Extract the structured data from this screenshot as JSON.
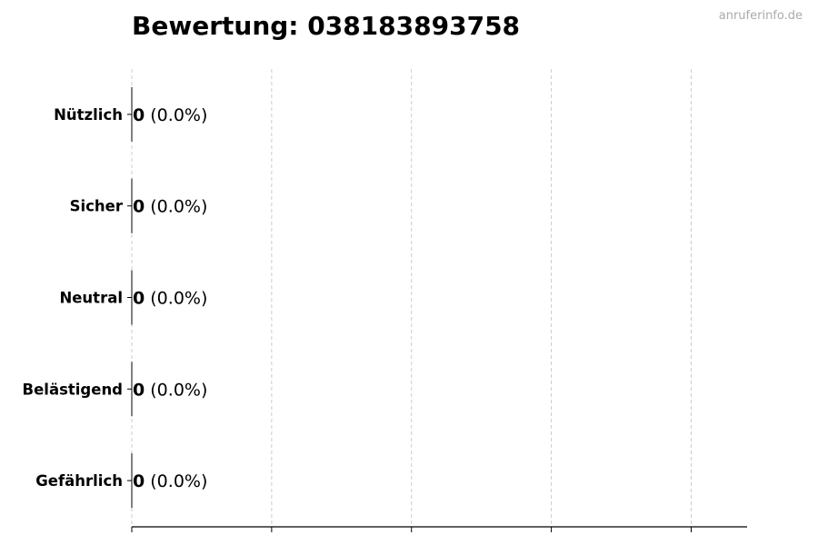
{
  "title": "Bewertung: 038183893758",
  "watermark": "anruferinfo.de",
  "chart_data": {
    "type": "bar",
    "orientation": "horizontal",
    "title": "Bewertung: 038183893758",
    "categories": [
      "Nützlich",
      "Sicher",
      "Neutral",
      "Belästigend",
      "Gefährlich"
    ],
    "values": [
      0,
      0,
      0,
      0,
      0
    ],
    "labels": [
      {
        "count": "0",
        "percent": "(0.0%)"
      },
      {
        "count": "0",
        "percent": "(0.0%)"
      },
      {
        "count": "0",
        "percent": "(0.0%)"
      },
      {
        "count": "0",
        "percent": "(0.0%)"
      },
      {
        "count": "0",
        "percent": "(0.0%)"
      }
    ],
    "xlim": [
      0,
      4.4
    ],
    "xticks": [
      0,
      1,
      2,
      3,
      4
    ],
    "xtick_labels_shown": false,
    "grid": "vertical dashed",
    "bar_edge_color": "#000000",
    "grid_color": "#cccccc"
  }
}
